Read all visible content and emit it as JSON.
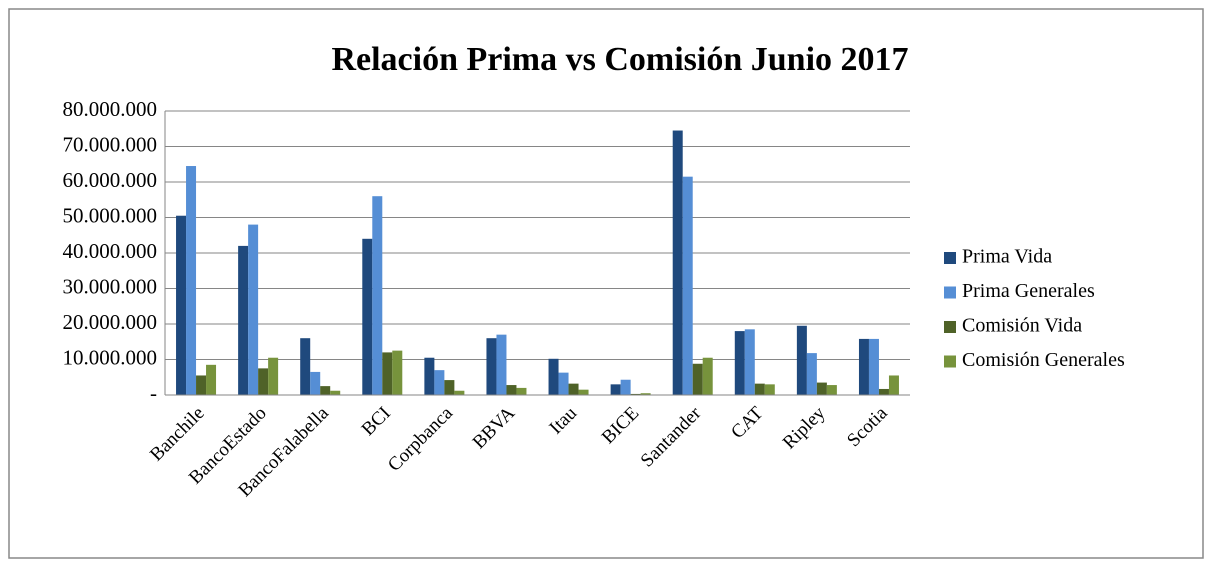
{
  "chart_data": {
    "type": "bar",
    "title": "Relación Prima vs Comisión Junio 2017",
    "categories": [
      "Banchile",
      "BancoEstado",
      "BancoFalabella",
      "BCI",
      "Corpbanca",
      "BBVA",
      "Itau",
      "BICE",
      "Santander",
      "CAT",
      "Ripley",
      "Scotia"
    ],
    "series": [
      {
        "name": "Prima Vida",
        "color": "#1f497d",
        "values": [
          50500000,
          42000000,
          16000000,
          44000000,
          10500000,
          16000000,
          10200000,
          3000000,
          74500000,
          18000000,
          19500000,
          15800000
        ]
      },
      {
        "name": "Prima Generales",
        "color": "#558ed5",
        "values": [
          64500000,
          48000000,
          6500000,
          56000000,
          7000000,
          17000000,
          6300000,
          4300000,
          61500000,
          18500000,
          11800000,
          15800000
        ]
      },
      {
        "name": "Comisión Vida",
        "color": "#4f6228",
        "values": [
          5500000,
          7500000,
          2500000,
          12000000,
          4200000,
          2800000,
          3200000,
          300000,
          8800000,
          3200000,
          3500000,
          1700000
        ]
      },
      {
        "name": "Comisión Generales",
        "color": "#77933c",
        "values": [
          8500000,
          10500000,
          1200000,
          12500000,
          1200000,
          2000000,
          1500000,
          500000,
          10500000,
          3000000,
          2800000,
          5500000
        ]
      }
    ],
    "ylim": [
      0,
      80000000
    ],
    "yticks": [
      {
        "value": 0,
        "label": "-"
      },
      {
        "value": 10000000,
        "label": "10.000.000"
      },
      {
        "value": 20000000,
        "label": "20.000.000"
      },
      {
        "value": 30000000,
        "label": "30.000.000"
      },
      {
        "value": 40000000,
        "label": "40.000.000"
      },
      {
        "value": 50000000,
        "label": "50.000.000"
      },
      {
        "value": 60000000,
        "label": "60.000.000"
      },
      {
        "value": 70000000,
        "label": "70.000.000"
      },
      {
        "value": 80000000,
        "label": "80.000.000"
      }
    ],
    "grid": true,
    "legend": "right"
  }
}
